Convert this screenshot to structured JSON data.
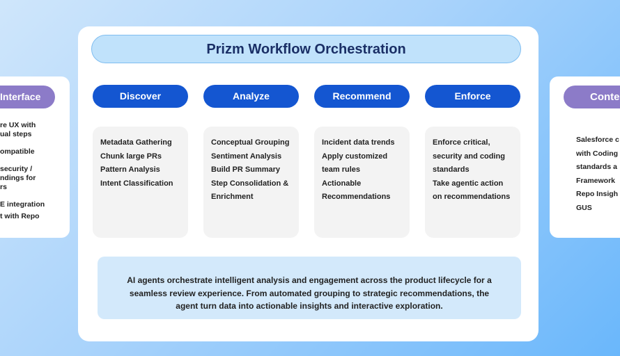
{
  "left_panel": {
    "title": "Interface",
    "lines": [
      "re UX with",
      "ual steps",
      "ompatible",
      "security /",
      "ndings for",
      "rs",
      "E integration",
      "t with Repo"
    ]
  },
  "right_panel": {
    "title": "Conte",
    "lines": [
      "Salesforce c",
      "with Coding",
      "standards a",
      "Framework",
      "Repo Insigh",
      "GUS"
    ]
  },
  "main": {
    "title": "Prizm Workflow Orchestration",
    "stages": [
      {
        "label": "Discover",
        "items": [
          "Metadata Gathering",
          "Chunk large PRs",
          "Pattern Analysis",
          "Intent Classification"
        ]
      },
      {
        "label": "Analyze",
        "items": [
          "Conceptual Grouping",
          "Sentiment Analysis",
          "Build PR Summary",
          "Step Consolidation &",
          "Enrichment"
        ]
      },
      {
        "label": "Recommend",
        "items": [
          "Incident data trends",
          "Apply customized",
          "team rules",
          "Actionable",
          "Recommendations"
        ]
      },
      {
        "label": "Enforce",
        "items": [
          "Enforce critical,",
          "security and coding",
          "standards",
          "Take agentic action",
          "on recommendations"
        ]
      }
    ],
    "footer": [
      "AI agents orchestrate intelligent analysis and engagement across the product lifecycle for a",
      "seamless review experience. From automated grouping to strategic recommendations, the",
      "agent turn data into actionable insights and interactive exploration."
    ]
  }
}
